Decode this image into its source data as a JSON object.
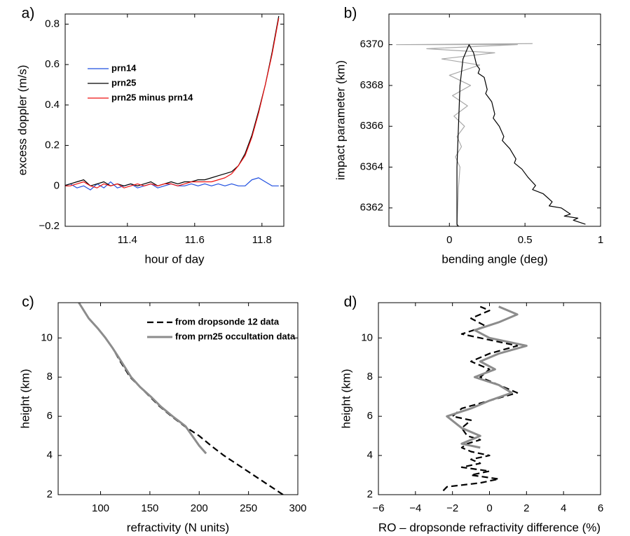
{
  "chart_data": [
    {
      "type": "line",
      "label": "a)",
      "x_label": "hour of day",
      "y_label": "excess doppler (m/s)",
      "xlim": [
        11.215,
        11.865
      ],
      "xticks": [
        11.4,
        11.6,
        11.8
      ],
      "ylim": [
        -0.2,
        0.85
      ],
      "yticks": [
        {
          "value": -0.2,
          "label": "−0.2"
        },
        0,
        0.2,
        0.4,
        0.6,
        0.8
      ],
      "legend": "upper left",
      "x": [
        11.21,
        11.23,
        11.25,
        11.27,
        11.29,
        11.31,
        11.33,
        11.35,
        11.37,
        11.39,
        11.41,
        11.43,
        11.45,
        11.47,
        11.49,
        11.51,
        11.53,
        11.55,
        11.57,
        11.59,
        11.61,
        11.63,
        11.65,
        11.67,
        11.69,
        11.71,
        11.73,
        11.75,
        11.77,
        11.79,
        11.81,
        11.83,
        11.85
      ],
      "series": [
        {
          "name": "prn14",
          "color": "#1f4fe0",
          "linestyle": "solid",
          "values": [
            0.0,
            0.01,
            -0.01,
            0.0,
            -0.02,
            0.01,
            -0.01,
            0.02,
            -0.01,
            0.0,
            0.01,
            -0.01,
            0.0,
            0.01,
            -0.01,
            0.0,
            0.01,
            0.0,
            0.0,
            0.01,
            0.0,
            0.01,
            0.0,
            0.01,
            0.0,
            0.01,
            0.0,
            0.0,
            0.03,
            0.04,
            0.02,
            0.0,
            0.0
          ]
        },
        {
          "name": "prn25",
          "color": "#000000",
          "linestyle": "solid",
          "values": [
            0.0,
            0.01,
            0.02,
            0.03,
            0.0,
            0.01,
            0.02,
            0.0,
            0.01,
            0.0,
            0.01,
            0.0,
            0.01,
            0.02,
            0.0,
            0.01,
            0.02,
            0.01,
            0.02,
            0.02,
            0.03,
            0.03,
            0.04,
            0.05,
            0.06,
            0.07,
            0.1,
            0.16,
            0.25,
            0.37,
            0.5,
            0.66,
            0.84
          ]
        },
        {
          "name": "prn25 minus prn14",
          "color": "#ee1111",
          "linestyle": "solid",
          "values": [
            0.0,
            0.0,
            0.01,
            0.02,
            0.0,
            -0.01,
            0.01,
            0.0,
            0.01,
            -0.01,
            0.0,
            0.01,
            0.0,
            0.01,
            0.0,
            0.01,
            0.01,
            0.0,
            0.01,
            0.02,
            0.02,
            0.02,
            0.02,
            0.03,
            0.04,
            0.06,
            0.1,
            0.15,
            0.24,
            0.36,
            0.5,
            0.65,
            0.83
          ]
        }
      ]
    },
    {
      "type": "line",
      "label": "b)",
      "x_label": "bending angle (deg)",
      "y_label": "impact parameter (km)",
      "xlim": [
        -0.4,
        1
      ],
      "xticks": [
        0,
        0.5,
        1
      ],
      "ylim": [
        6361.1,
        6371.5
      ],
      "yticks": [
        6362,
        6364,
        6366,
        6368,
        6370
      ],
      "series": [
        {
          "color": "#a8a8a8",
          "linestyle": "solid",
          "x": [
            0.05,
            0.06,
            0.07,
            0.04,
            0.08,
            0.05,
            0.1,
            0.03,
            0.12,
            0.02,
            0.14,
            0.0,
            0.2,
            -0.05,
            0.3,
            -0.15,
            0.45,
            -0.35,
            0.55
          ],
          "values": [
            6361.1,
            6363,
            6364,
            6364.5,
            6365,
            6365.5,
            6366,
            6366.5,
            6367,
            6367.5,
            6368,
            6368.5,
            6369,
            6369.3,
            6369.6,
            6369.8,
            6370,
            6370,
            6370.05
          ]
        },
        {
          "color": "#000000",
          "linestyle": "solid",
          "x": [
            0.06,
            0.05,
            0.05,
            0.05,
            0.06,
            0.07,
            0.09,
            0.13,
            0.16,
            0.18,
            0.2,
            0.19,
            0.23,
            0.25,
            0.24,
            0.28,
            0.3,
            0.29,
            0.33,
            0.36,
            0.35,
            0.4,
            0.44,
            0.43,
            0.48,
            0.52,
            0.57,
            0.55,
            0.62,
            0.68,
            0.66,
            0.74,
            0.8,
            0.76,
            0.85,
            0.82,
            0.9
          ],
          "values": [
            6361.1,
            6361.2,
            6362,
            6364,
            6366,
            6368,
            6369.3,
            6370,
            6369.6,
            6369,
            6368.8,
            6368.6,
            6368.4,
            6367.8,
            6367.6,
            6367.2,
            6366.6,
            6366.4,
            6366,
            6365.5,
            6365.3,
            6364.9,
            6364.4,
            6364.2,
            6363.9,
            6363.5,
            6363.1,
            6362.9,
            6362.7,
            6362.3,
            6362.1,
            6362.0,
            6361.7,
            6361.6,
            6361.5,
            6361.4,
            6361.2
          ]
        }
      ]
    },
    {
      "type": "line",
      "label": "c)",
      "x_label": "refractivity (N units)",
      "y_label": "height (km)",
      "xlim": [
        57,
        300
      ],
      "xticks": [
        100,
        150,
        200,
        250,
        300
      ],
      "ylim": [
        2,
        11.8
      ],
      "yticks": [
        2,
        4,
        6,
        8,
        10
      ],
      "legend": "upper right",
      "series": [
        {
          "name": "from dropsonde 12 data",
          "color": "#000000",
          "linestyle": "dashed",
          "x": [
            285,
            270,
            255,
            240,
            225,
            212,
            200,
            185,
            172,
            160,
            150,
            140,
            130,
            120,
            112,
            105,
            97,
            88,
            78
          ],
          "values": [
            2,
            2.5,
            3,
            3.5,
            4,
            4.5,
            5,
            5.5,
            6,
            6.5,
            7,
            7.5,
            8,
            8.8,
            9.5,
            10,
            10.5,
            11,
            11.8
          ]
        },
        {
          "name": "from prn25 occultation data",
          "color": "#8c8c8c",
          "linestyle": "solid",
          "x": [
            207,
            200,
            186,
            173,
            161,
            151,
            140,
            131,
            121,
            112,
            105,
            97,
            88,
            78
          ],
          "values": [
            4.1,
            4.5,
            5.5,
            6,
            6.5,
            7,
            7.5,
            8,
            8.8,
            9.5,
            10,
            10.5,
            11,
            11.8
          ]
        }
      ]
    },
    {
      "type": "line",
      "label": "d)",
      "x_label": "RO – dropsonde refractivity difference (%)",
      "y_label": "height (km)",
      "xlim": [
        -6,
        6
      ],
      "xticks": [
        {
          "value": -6,
          "label": "−6"
        },
        {
          "value": -4,
          "label": "−4"
        },
        {
          "value": -2,
          "label": "−2"
        },
        0,
        2,
        4,
        6
      ],
      "ylim": [
        2,
        11.8
      ],
      "yticks": [
        2,
        4,
        6,
        8,
        10
      ],
      "series": [
        {
          "color": "#000000",
          "linestyle": "dashed",
          "x": [
            -2.5,
            -2.3,
            -0.5,
            0.5,
            -1,
            0,
            -1.5,
            -0.5,
            -1,
            0,
            -1,
            -1.5,
            -1.2,
            -0.5,
            -1.2,
            -1.5,
            -1,
            -2,
            -1.5,
            0,
            1.5,
            0.5,
            -0.5,
            0,
            -1,
            0,
            1.5,
            -0.5,
            -1.5,
            -0.2,
            -1,
            0,
            -0.5
          ],
          "values": [
            2.2,
            2.4,
            2.6,
            2.8,
            3.0,
            3.2,
            3.4,
            3.6,
            3.8,
            4.0,
            4.2,
            4.4,
            4.6,
            4.8,
            5.0,
            5.4,
            5.8,
            6.0,
            6.4,
            6.8,
            7.2,
            7.6,
            8.0,
            8.4,
            8.8,
            9.2,
            9.6,
            10.0,
            10.2,
            10.6,
            11.0,
            11.4,
            11.6
          ]
        },
        {
          "color": "#8c8c8c",
          "linestyle": "solid",
          "x": [
            -0.5,
            -1.5,
            -0.5,
            -1.5,
            -2.3,
            -1,
            0,
            1.2,
            0.5,
            -0.8,
            0.3,
            -0.5,
            0.5,
            2,
            0,
            -0.8,
            0.5,
            1.5,
            0.5
          ],
          "values": [
            4.4,
            4.6,
            5.0,
            5.4,
            6.0,
            6.4,
            6.8,
            7.2,
            7.6,
            8.0,
            8.4,
            8.8,
            9.2,
            9.6,
            10.0,
            10.4,
            10.8,
            11.2,
            11.6
          ]
        }
      ]
    }
  ]
}
